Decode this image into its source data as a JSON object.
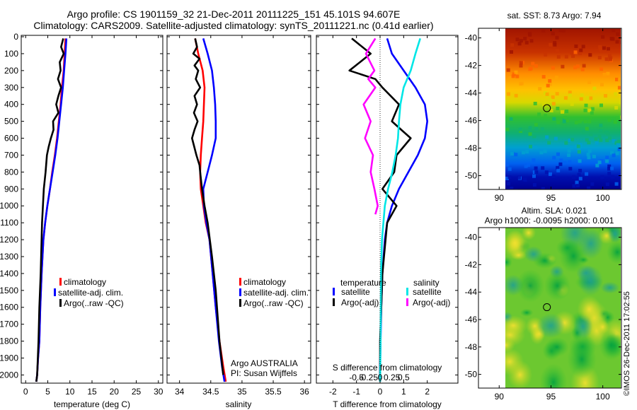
{
  "header": {
    "line1": "Argo profile: CS 1901159_32 21-Dec-2011 20111225_151 45.101S 94.607E",
    "line2": "Climatology: CARS2009. Satellite-adjusted climatology: synTS_20111221.nc (0.41d earlier)"
  },
  "stamp": "©IMOS 26-Dec-2011 17:02:55",
  "colors": {
    "climatology": "#ff0000",
    "satellite": "#0000ff",
    "argo": "#000000",
    "satellite_s": "#00e6e6",
    "argo_s": "#ff00ff"
  },
  "depth_axis": {
    "ylim": [
      0,
      2050
    ],
    "ticks": [
      0,
      100,
      200,
      300,
      400,
      500,
      600,
      700,
      800,
      900,
      1000,
      1100,
      1200,
      1300,
      1400,
      1500,
      1600,
      1700,
      1800,
      1900,
      2000
    ]
  },
  "chart_data": [
    {
      "type": "line",
      "panel": "temperature",
      "xlabel": "temperature (deg C)",
      "xlim": [
        -1,
        31
      ],
      "xticks": [
        0,
        5,
        10,
        15,
        20,
        25,
        30
      ],
      "legend": [
        "climatology",
        "satellite-adj. clim.",
        "Argo(..raw -QC)"
      ],
      "series": [
        {
          "name": "climatology",
          "color": "#ff0000",
          "x": [
            9.0,
            8.8,
            8.6,
            8.2,
            7.9,
            7.5,
            7.1,
            6.6,
            6.0,
            5.5,
            4.9,
            4.4,
            4.0,
            3.6,
            3.3,
            3.1,
            2.8,
            2.6,
            2.4
          ],
          "y": [
            10,
            100,
            200,
            300,
            400,
            500,
            600,
            700,
            800,
            900,
            1000,
            1100,
            1200,
            1400,
            1600,
            1800,
            1900,
            2000,
            2040
          ]
        },
        {
          "name": "satellite-adj. clim.",
          "color": "#0000ff",
          "x": [
            9.2,
            9.0,
            8.7,
            8.4,
            8.0,
            7.6,
            7.2,
            6.7,
            6.1,
            5.5,
            4.9,
            4.4,
            4.0,
            3.6,
            3.3,
            3.1,
            2.8,
            2.6,
            2.4
          ],
          "y": [
            10,
            100,
            200,
            300,
            400,
            500,
            600,
            700,
            800,
            900,
            1000,
            1100,
            1200,
            1400,
            1600,
            1800,
            1900,
            2000,
            2040
          ]
        },
        {
          "name": "Argo(..raw -QC)",
          "color": "#000000",
          "x": [
            8.5,
            8.0,
            8.6,
            7.7,
            7.9,
            7.3,
            8.0,
            7.4,
            6.9,
            7.4,
            6.2,
            6.3,
            5.7,
            5.2,
            4.8,
            4.5,
            4.1,
            3.7,
            3.4,
            3.1,
            2.9,
            2.6,
            2.4
          ],
          "y": [
            10,
            60,
            100,
            150,
            200,
            250,
            300,
            350,
            400,
            450,
            500,
            550,
            600,
            650,
            700,
            800,
            900,
            1100,
            1400,
            1600,
            1800,
            2000,
            2040
          ]
        }
      ]
    },
    {
      "type": "line",
      "panel": "salinity",
      "xlabel": "salinity",
      "xlim": [
        33.8,
        36.1
      ],
      "xticks": [
        34,
        34.5,
        35,
        35.5,
        36
      ],
      "legend": [
        "climatology",
        "satellite-adj. clim.",
        "Argo(..raw -QC)"
      ],
      "annotation": [
        "Argo AUSTRALIA",
        "PI: Susan Wijffels"
      ],
      "series": [
        {
          "name": "climatology",
          "color": "#ff0000",
          "x": [
            34.25,
            34.3,
            34.37,
            34.4,
            34.39,
            34.38,
            34.36,
            34.34,
            34.33,
            34.34,
            34.38,
            34.42,
            34.48,
            34.53,
            34.58,
            34.64,
            34.7,
            34.74
          ],
          "y": [
            10,
            100,
            200,
            300,
            400,
            500,
            600,
            700,
            800,
            900,
            1000,
            1100,
            1200,
            1400,
            1600,
            1800,
            1950,
            2040
          ]
        },
        {
          "name": "satellite-adj. clim.",
          "color": "#0000ff",
          "x": [
            34.38,
            34.45,
            34.52,
            34.55,
            34.57,
            34.58,
            34.58,
            34.52,
            34.45,
            34.38,
            34.39,
            34.43,
            34.48,
            34.53,
            34.58,
            34.63,
            34.68,
            34.72
          ],
          "y": [
            10,
            100,
            200,
            300,
            400,
            500,
            600,
            700,
            800,
            900,
            1000,
            1100,
            1200,
            1400,
            1600,
            1800,
            1950,
            2040
          ]
        },
        {
          "name": "Argo(..raw -QC)",
          "color": "#000000",
          "x": [
            34.25,
            34.28,
            34.22,
            34.32,
            34.24,
            34.3,
            34.26,
            34.33,
            34.24,
            34.28,
            34.23,
            34.29,
            34.24,
            34.2,
            34.27,
            34.32,
            34.33,
            34.36,
            34.4,
            34.45,
            34.52,
            34.58,
            34.64,
            34.7
          ],
          "y": [
            10,
            60,
            100,
            130,
            170,
            200,
            250,
            300,
            350,
            400,
            450,
            500,
            550,
            600,
            700,
            760,
            800,
            900,
            1000,
            1100,
            1300,
            1500,
            1800,
            2000
          ]
        }
      ]
    },
    {
      "type": "line",
      "panel": "differences",
      "xlabel": "T difference from climatology",
      "xlabel_top": "S difference from climatology",
      "xlim": [
        -2.7,
        3.3
      ],
      "xticks": [
        -2,
        -1,
        0,
        1,
        2
      ],
      "xticks_top": [
        -0.5,
        -0.25,
        0,
        0.25,
        0.5
      ],
      "legend_temperature": {
        "title": "temperature",
        "entries": [
          "satellite",
          "Argo(-adj)"
        ]
      },
      "legend_salinity": {
        "title": "salinity",
        "entries": [
          "satellite",
          "Argo(-adj)"
        ]
      },
      "series": [
        {
          "name": "temperature satellite",
          "color": "#0000ff",
          "x": [
            0.3,
            0.5,
            1.0,
            1.5,
            1.9,
            2.0,
            1.9,
            1.6,
            1.2,
            0.8,
            0.5,
            0.3,
            0.2,
            0.1,
            0.05,
            0.02,
            0.0,
            0.0
          ],
          "y": [
            10,
            100,
            200,
            300,
            400,
            500,
            600,
            700,
            800,
            900,
            1000,
            1100,
            1200,
            1400,
            1600,
            1800,
            1950,
            2040
          ]
        },
        {
          "name": "temperature Argo(-adj)",
          "color": "#000000",
          "x": [
            -1.2,
            -0.4,
            -1.3,
            -0.2,
            0.1,
            0.8,
            0.5,
            0.9,
            1.3,
            0.7,
            0.6,
            0.1,
            0.7,
            0.3,
            0.1,
            0.0,
            0.0
          ],
          "y": [
            10,
            100,
            200,
            250,
            300,
            400,
            500,
            550,
            600,
            700,
            800,
            900,
            1000,
            1100,
            1400,
            1800,
            2040
          ]
        },
        {
          "name": "salinity satellite",
          "color": "#00e6e6",
          "x": [
            0.85,
            0.75,
            0.65,
            0.5,
            0.43,
            0.4,
            0.38,
            0.33,
            0.26,
            0.17,
            0.1,
            0.07,
            0.04,
            0.02,
            0.01,
            0.0
          ],
          "y": [
            10,
            100,
            200,
            300,
            400,
            500,
            600,
            700,
            800,
            900,
            1000,
            1100,
            1200,
            1400,
            1800,
            2040
          ]
        },
        {
          "name": "salinity Argo(-adj)",
          "color": "#ff00ff",
          "x": [
            -0.1,
            -0.3,
            -0.12,
            -0.25,
            -0.1,
            -0.35,
            -0.2,
            -0.32,
            -0.15,
            -0.2,
            -0.12,
            -0.05,
            -0.1
          ],
          "y": [
            10,
            100,
            200,
            250,
            300,
            400,
            500,
            600,
            700,
            800,
            900,
            1000,
            1050
          ]
        }
      ]
    },
    {
      "type": "heatmap",
      "panel": "sst",
      "title": "sat. SST: 8.73 Argo: 7.94",
      "xticks": [
        90,
        95,
        100
      ],
      "yticks": [
        -40,
        -42,
        -44,
        -46,
        -48,
        -50
      ],
      "xlim": [
        88,
        101.8
      ],
      "ylim": [
        -51,
        -39.3
      ],
      "profile_location": [
        94.607,
        -45.101
      ]
    },
    {
      "type": "heatmap",
      "panel": "sla",
      "title_line1": "Altim. SLA: 0.021",
      "title_line2": "Argo h1000: -0.0095 h2000: 0.001",
      "xticks": [
        90,
        95,
        100
      ],
      "yticks": [
        -40,
        -42,
        -44,
        -46,
        -48,
        -50
      ],
      "xlim": [
        88,
        101.8
      ],
      "ylim": [
        -51,
        -39.3
      ],
      "profile_location": [
        94.607,
        -45.101
      ]
    }
  ]
}
